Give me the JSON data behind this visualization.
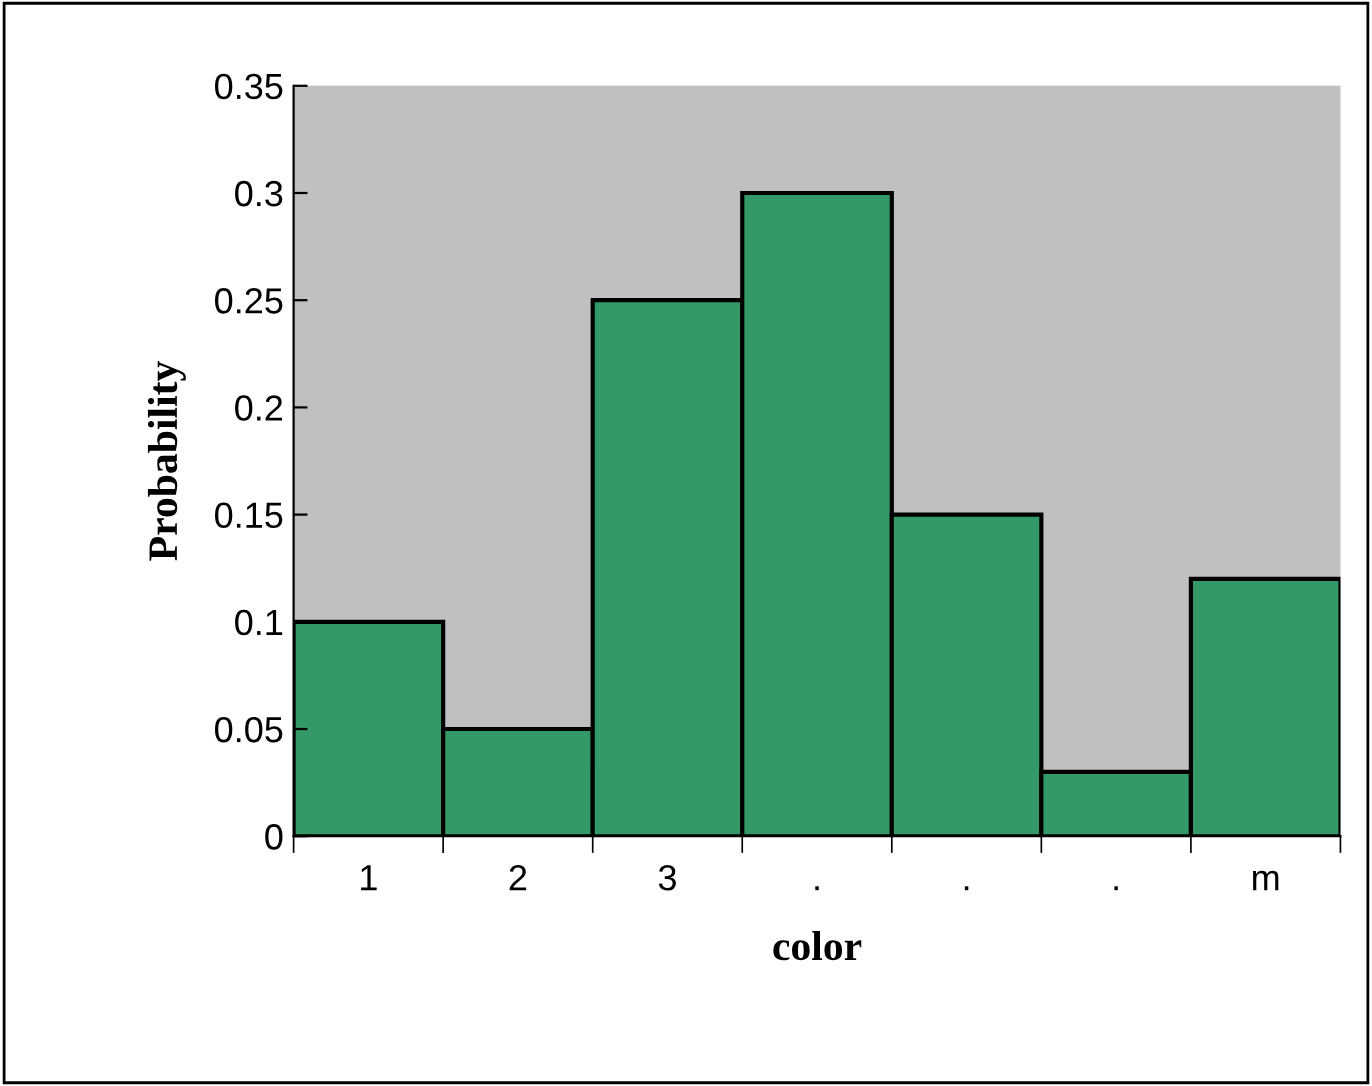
{
  "chart_data": {
    "type": "bar",
    "xlabel": "color",
    "ylabel": "Probability",
    "categories": [
      "1",
      "2",
      "3",
      ".",
      ".",
      ".",
      "m"
    ],
    "values": [
      0.1,
      0.05,
      0.25,
      0.3,
      0.15,
      0.03,
      0.12
    ],
    "color": "#339966",
    "ylim": [
      0,
      0.35
    ],
    "yticks": [
      0,
      0.05,
      0.1,
      0.15,
      0.2,
      0.25,
      0.3,
      0.35
    ],
    "grid": false,
    "legend": false
  }
}
